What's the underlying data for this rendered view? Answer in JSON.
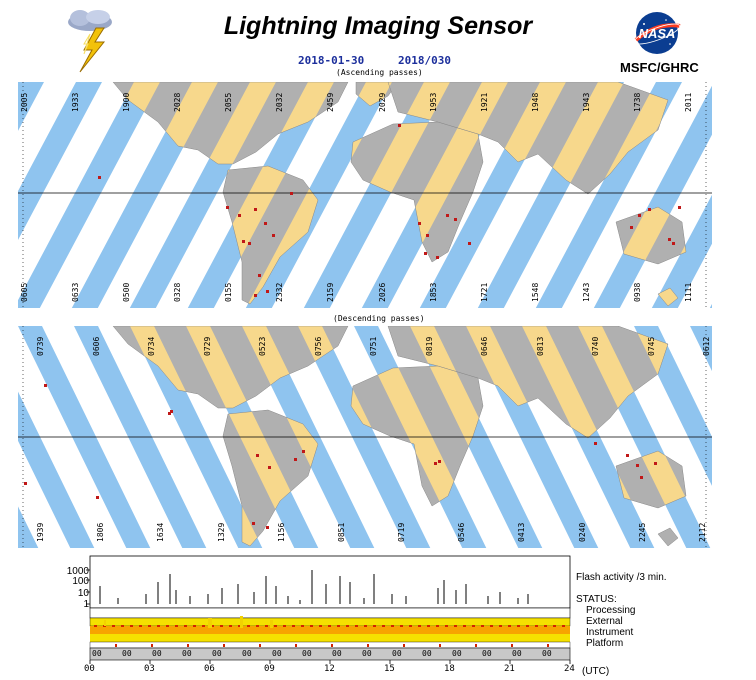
{
  "header": {
    "title": "Lightning Imaging Sensor",
    "date": "2018-01-30",
    "day_of_year": "2018/030",
    "org": "MSFC/GHRC",
    "logo_text": "NASA"
  },
  "ascending": {
    "caption": "(Ascending passes)",
    "orbits_top": [
      "2005",
      "1933",
      "1900",
      "2028",
      "2055",
      "2032",
      "2459",
      "2029",
      "1953",
      "1921",
      "1948",
      "1943",
      "1738",
      "2011"
    ],
    "orbits_bottom": [
      "0605",
      "0633",
      "0500",
      "0328",
      "0155",
      "2332",
      "2159",
      "2026",
      "1853",
      "1721",
      "1548",
      "1243",
      "0938",
      "1111"
    ]
  },
  "descending": {
    "caption": "(Descending passes)",
    "orbits_top": [
      "0739",
      "0606",
      "0734",
      "0729",
      "0523",
      "0756",
      "0751",
      "0819",
      "0646",
      "0813",
      "0740",
      "0745",
      "0612"
    ],
    "orbits_bottom": [
      "1939",
      "1806",
      "1634",
      "1329",
      "1156",
      "0851",
      "0719",
      "0546",
      "0413",
      "0240",
      "2245",
      "2112"
    ]
  },
  "timeline": {
    "y_ticks": [
      "1000",
      "100",
      "10",
      "1"
    ],
    "flash_label": "Flash activity /3 min.",
    "status_label": "STATUS:",
    "status_items": [
      "Processing",
      "External",
      "Instrument",
      "Platform"
    ],
    "hour_ticks": [
      "00",
      "03",
      "06",
      "09",
      "12",
      "15",
      "18",
      "21",
      "24"
    ],
    "utc_label": "(UTC)",
    "grey_row_ticks": [
      "00",
      "00",
      "00",
      "00",
      "00",
      "00",
      "00",
      "00",
      "00",
      "00",
      "00",
      "00",
      "00",
      "00",
      "00",
      "00"
    ]
  },
  "colors": {
    "ocean_band": "#8fc4ef",
    "land_day": "#f7d88c",
    "land_night": "#b0b0b0",
    "lightning": "#c01818",
    "date_text": "#1c2f9c",
    "status_yellow": "#f5e100",
    "status_orange": "#f7a400",
    "status_red": "#d32400"
  }
}
